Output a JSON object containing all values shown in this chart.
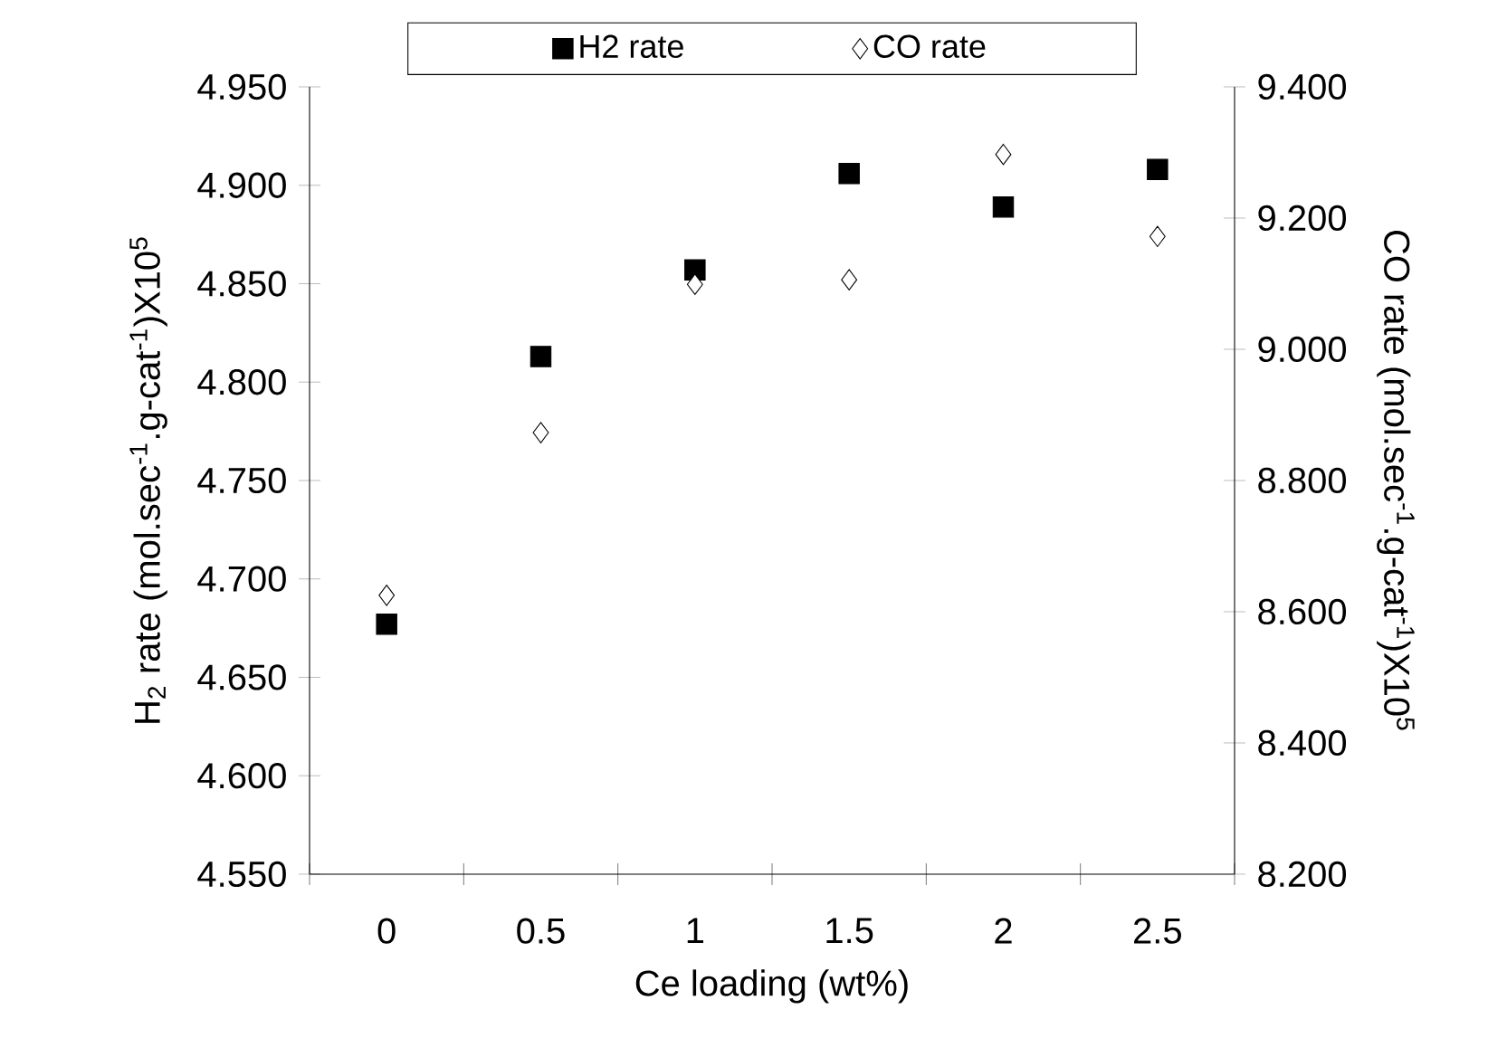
{
  "chart_data": {
    "type": "scatter",
    "xlabel": "Ce loading (wt%)",
    "ylabel": "H$_{2}$ rate (mol.sec$^{-1}$.g-cat$^{-1}$)X10$^{5}$",
    "y2label": "CO rate (mol.sec$^{-1}$.g-cat$^{-1}$)X10$^{5}$",
    "categories": [
      "0",
      "0.5",
      "1",
      "1.5",
      "2",
      "2.5"
    ],
    "series": [
      {
        "name": "H2 rate",
        "color": "#000000",
        "marker": "square",
        "values": [
          4.677,
          4.813,
          4.857,
          4.906,
          4.889,
          4.908
        ]
      },
      {
        "name": "CO rate",
        "color": "#000000",
        "marker": "diamond",
        "axis": "y2",
        "values": [
          8.625,
          8.873,
          9.099,
          9.106,
          9.297,
          9.172
        ]
      }
    ],
    "ylim": [
      4.55,
      4.95
    ],
    "yticks": [
      {
        "value": 4.55,
        "label": "4.550"
      },
      {
        "value": 4.6,
        "label": "4.600"
      },
      {
        "value": 4.65,
        "label": "4.650"
      },
      {
        "value": 4.7,
        "label": "4.700"
      },
      {
        "value": 4.75,
        "label": "4.750"
      },
      {
        "value": 4.8,
        "label": "4.800"
      },
      {
        "value": 4.85,
        "label": "4.850"
      },
      {
        "value": 4.9,
        "label": "4.900"
      },
      {
        "value": 4.95,
        "label": "4.950"
      }
    ],
    "y2lim": [
      8.2,
      9.4
    ],
    "y2ticks": [
      {
        "value": 8.2,
        "label": "8.200"
      },
      {
        "value": 8.4,
        "label": "8.400"
      },
      {
        "value": 8.6,
        "label": "8.600"
      },
      {
        "value": 8.8,
        "label": "8.800"
      },
      {
        "value": 9.0,
        "label": "9.000"
      },
      {
        "value": 9.2,
        "label": "9.200"
      },
      {
        "value": 9.4,
        "label": "9.400"
      }
    ],
    "legend": "top"
  }
}
